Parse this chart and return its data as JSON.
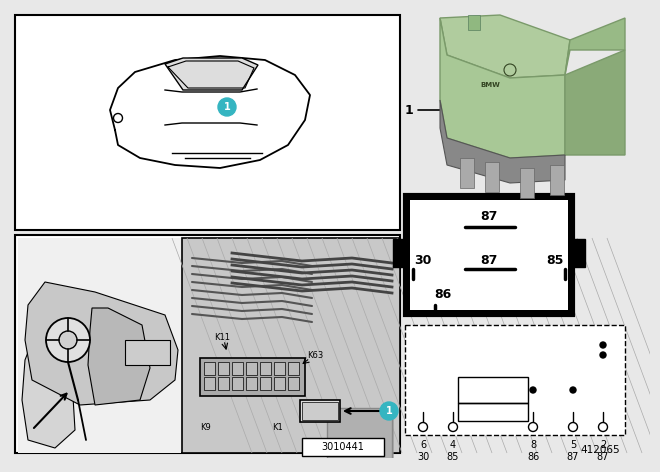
{
  "bg_color": "#e8e8e8",
  "white": "#ffffff",
  "black": "#000000",
  "teal": "#35b5c1",
  "relay_green": "#a8c896",
  "relay_green_dark": "#8aaa78",
  "relay_gray": "#8a8a8a",
  "relay_gray_dark": "#666666",
  "part_number": "412065",
  "diagram_number": "3010441",
  "pin_labels_top": [
    "87"
  ],
  "pin_labels_mid_left": "30",
  "pin_labels_mid_center": "87",
  "pin_labels_mid_right": "85",
  "pin_labels_bot": [
    "86"
  ],
  "schematic_pins_col": [
    "6",
    "4",
    "8",
    "5",
    "2"
  ],
  "schematic_pins_row": [
    "30",
    "85",
    "86",
    "87",
    "87"
  ],
  "label1_line_color": "#000000"
}
